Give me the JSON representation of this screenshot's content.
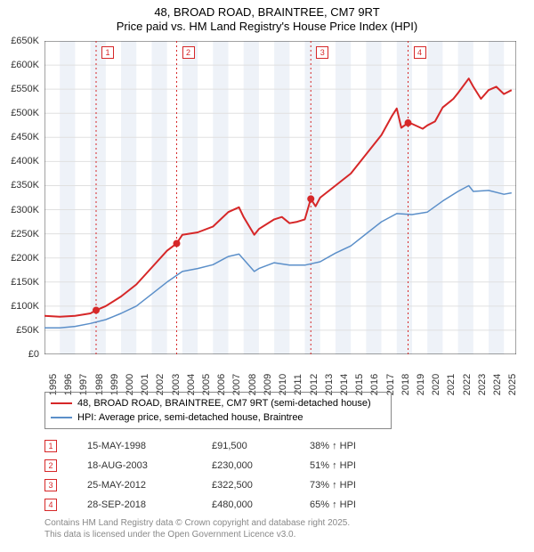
{
  "title": {
    "line1": "48, BROAD ROAD, BRAINTREE, CM7 9RT",
    "line2": "Price paid vs. HM Land Registry's House Price Index (HPI)"
  },
  "chart": {
    "type": "line",
    "background_color": "#ffffff",
    "alt_band_color": "#eef2f8",
    "grid_color": "#e0e0e0",
    "axis_color": "#444444",
    "marker_line_color": "#d62728",
    "marker_line_dash": "2,3",
    "label_fontsize": 11,
    "xlim": [
      1995,
      2025.8
    ],
    "ylim": [
      0,
      650
    ],
    "ytick_step": 50,
    "yticks_labels": [
      "£0",
      "£50K",
      "£100K",
      "£150K",
      "£200K",
      "£250K",
      "£300K",
      "£350K",
      "£400K",
      "£450K",
      "£500K",
      "£550K",
      "£600K",
      "£650K"
    ],
    "xticks": [
      1995,
      1996,
      1997,
      1998,
      1999,
      2000,
      2001,
      2002,
      2003,
      2004,
      2005,
      2006,
      2007,
      2008,
      2009,
      2010,
      2011,
      2012,
      2013,
      2014,
      2015,
      2016,
      2017,
      2018,
      2019,
      2020,
      2021,
      2022,
      2023,
      2024,
      2025
    ],
    "series": [
      {
        "name": "property",
        "label": "48, BROAD ROAD, BRAINTREE, CM7 9RT (semi-detached house)",
        "color": "#d62728",
        "line_width": 2,
        "points": [
          [
            1995,
            80
          ],
          [
            1996,
            78
          ],
          [
            1997,
            80
          ],
          [
            1998,
            85
          ],
          [
            1998.37,
            91.5
          ],
          [
            1999,
            100
          ],
          [
            2000,
            120
          ],
          [
            2001,
            145
          ],
          [
            2002,
            180
          ],
          [
            2003,
            215
          ],
          [
            2003.63,
            230
          ],
          [
            2004,
            248
          ],
          [
            2005,
            253
          ],
          [
            2006,
            265
          ],
          [
            2007,
            295
          ],
          [
            2007.7,
            305
          ],
          [
            2008,
            285
          ],
          [
            2008.7,
            248
          ],
          [
            2009,
            260
          ],
          [
            2010,
            280
          ],
          [
            2010.5,
            285
          ],
          [
            2011,
            272
          ],
          [
            2011.5,
            275
          ],
          [
            2012,
            280
          ],
          [
            2012.39,
            322.5
          ],
          [
            2012.7,
            307
          ],
          [
            2013,
            325
          ],
          [
            2014,
            350
          ],
          [
            2015,
            375
          ],
          [
            2016,
            415
          ],
          [
            2017,
            455
          ],
          [
            2017.7,
            495
          ],
          [
            2018,
            510
          ],
          [
            2018.3,
            470
          ],
          [
            2018.74,
            480
          ],
          [
            2019,
            478
          ],
          [
            2019.7,
            468
          ],
          [
            2020,
            475
          ],
          [
            2020.5,
            483
          ],
          [
            2021,
            512
          ],
          [
            2021.7,
            530
          ],
          [
            2022,
            542
          ],
          [
            2022.7,
            572
          ],
          [
            2023,
            555
          ],
          [
            2023.5,
            530
          ],
          [
            2024,
            548
          ],
          [
            2024.5,
            555
          ],
          [
            2025,
            540
          ],
          [
            2025.5,
            548
          ]
        ]
      },
      {
        "name": "hpi",
        "label": "HPI: Average price, semi-detached house, Braintree",
        "color": "#5b8fc9",
        "line_width": 1.5,
        "points": [
          [
            1995,
            55
          ],
          [
            1996,
            55
          ],
          [
            1997,
            58
          ],
          [
            1998,
            64
          ],
          [
            1999,
            72
          ],
          [
            2000,
            85
          ],
          [
            2001,
            100
          ],
          [
            2002,
            125
          ],
          [
            2003,
            150
          ],
          [
            2004,
            172
          ],
          [
            2005,
            178
          ],
          [
            2006,
            186
          ],
          [
            2007,
            203
          ],
          [
            2007.7,
            208
          ],
          [
            2008,
            197
          ],
          [
            2008.7,
            172
          ],
          [
            2009,
            178
          ],
          [
            2010,
            190
          ],
          [
            2011,
            185
          ],
          [
            2012,
            185
          ],
          [
            2013,
            192
          ],
          [
            2014,
            210
          ],
          [
            2015,
            225
          ],
          [
            2016,
            250
          ],
          [
            2017,
            275
          ],
          [
            2018,
            292
          ],
          [
            2019,
            290
          ],
          [
            2020,
            295
          ],
          [
            2021,
            318
          ],
          [
            2022,
            338
          ],
          [
            2022.7,
            350
          ],
          [
            2023,
            338
          ],
          [
            2024,
            340
          ],
          [
            2025,
            332
          ],
          [
            2025.5,
            335
          ]
        ]
      }
    ],
    "sale_markers": [
      {
        "idx": "1",
        "x": 1998.37,
        "y": 91.5
      },
      {
        "idx": "2",
        "x": 2003.63,
        "y": 230
      },
      {
        "idx": "3",
        "x": 2012.39,
        "y": 322.5
      },
      {
        "idx": "4",
        "x": 2018.74,
        "y": 480
      }
    ]
  },
  "legend": {
    "items": [
      {
        "color": "#d62728",
        "label": "48, BROAD ROAD, BRAINTREE, CM7 9RT (semi-detached house)"
      },
      {
        "color": "#5b8fc9",
        "label": "HPI: Average price, semi-detached house, Braintree"
      }
    ]
  },
  "sales": [
    {
      "idx": "1",
      "date": "15-MAY-1998",
      "price": "£91,500",
      "delta": "38% ↑ HPI"
    },
    {
      "idx": "2",
      "date": "18-AUG-2003",
      "price": "£230,000",
      "delta": "51% ↑ HPI"
    },
    {
      "idx": "3",
      "date": "25-MAY-2012",
      "price": "£322,500",
      "delta": "73% ↑ HPI"
    },
    {
      "idx": "4",
      "date": "28-SEP-2018",
      "price": "£480,000",
      "delta": "65% ↑ HPI"
    }
  ],
  "footer": {
    "line1": "Contains HM Land Registry data © Crown copyright and database right 2025.",
    "line2": "This data is licensed under the Open Government Licence v3.0."
  }
}
